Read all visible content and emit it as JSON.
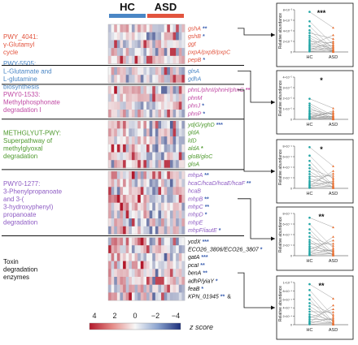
{
  "chart_data": {
    "type": "heatmap",
    "groups": [
      {
        "name": "HC",
        "color": "#4a86c5"
      },
      {
        "name": "ASD",
        "color": "#e2543e"
      }
    ],
    "pathways": [
      {
        "name": "PWY_4041:\nγ-Glutamyl\ncycle",
        "color": "#e2543e",
        "genes": [
          {
            "label": "gshA",
            "stars": "**",
            "star_color": "#3b5fb0"
          },
          {
            "label": "gshB",
            "stars": "*",
            "star_color": "#3b5fb0"
          },
          {
            "label": "ggt",
            "stars": "",
            "star_color": ""
          },
          {
            "label": "pxpA/pxpB/pxpC",
            "stars": "",
            "star_color": ""
          },
          {
            "label": "pepB",
            "stars": "*",
            "star_color": "#3b5fb0"
          }
        ]
      },
      {
        "name": "PWY-5505:\nL-Glutamate and\nL-glutamine\nbiosynthesis",
        "color": "#4a86c5",
        "genes": [
          {
            "label": "glnA",
            "stars": "",
            "star_color": ""
          },
          {
            "label": "gdhA",
            "stars": "",
            "star_color": ""
          }
        ]
      },
      {
        "name": "PWY0-1533:\nMethylphosphonate\ndegradation I",
        "color": "#c04aa4",
        "genes": [
          {
            "label": "phnL/phnI/phnH/phnG",
            "stars": "**",
            "star_color": "#c04aa4"
          },
          {
            "label": "phnM",
            "stars": "",
            "star_color": ""
          },
          {
            "label": "phnJ",
            "stars": "*",
            "star_color": "#3b5fb0"
          },
          {
            "label": "phnP",
            "stars": "*",
            "star_color": "#3b5fb0"
          }
        ]
      },
      {
        "name": "METHGLYUT-PWY:\nSuperpathway of\nmethylglyoxal\ndegradation",
        "color": "#4f9a2f",
        "genes": [
          {
            "label": "ydjG/yghD",
            "stars": "***",
            "star_color": "#3b5fb0"
          },
          {
            "label": "gldA",
            "stars": "",
            "star_color": ""
          },
          {
            "label": "ldD",
            "stars": "",
            "star_color": ""
          },
          {
            "label": "aldA",
            "stars": "*",
            "star_color": "#4f9a2f"
          },
          {
            "label": "gloB/gloC",
            "stars": "",
            "star_color": ""
          },
          {
            "label": "gloA",
            "stars": "",
            "star_color": ""
          }
        ]
      },
      {
        "name": "PWY0-1277:\n3-Phenylpropanoate\nand 3-(\n3-hydroxyphenyl)\npropanoate\ndegradation",
        "color": "#8e5cc4",
        "genes": [
          {
            "label": "mhpA",
            "stars": "**",
            "star_color": "#3b5fb0"
          },
          {
            "label": "hcaC/hcaD/hcaE/hcaF",
            "stars": "**",
            "star_color": "#3b5fb0"
          },
          {
            "label": "hcaB",
            "stars": "",
            "star_color": ""
          },
          {
            "label": "mhpB",
            "stars": "**",
            "star_color": "#3b5fb0"
          },
          {
            "label": "mhpC",
            "stars": "**",
            "star_color": "#3b5fb0"
          },
          {
            "label": "mhpD",
            "stars": "*",
            "star_color": "#3b5fb0"
          },
          {
            "label": "mhpE",
            "stars": "",
            "star_color": ""
          },
          {
            "label": "mhpF/iautE",
            "stars": "*",
            "star_color": "#3b5fb0"
          }
        ]
      },
      {
        "name": "Toxin\ndegradation\nenzymes",
        "color": "#111111",
        "genes": [
          {
            "label": "ycdX",
            "stars": "***",
            "star_color": "#3b5fb0"
          },
          {
            "label": "ECO26_3806/ECO26_3807",
            "stars": "*",
            "star_color": "#3b5fb0"
          },
          {
            "label": "gatA",
            "stars": "***",
            "star_color": "#3b5fb0"
          },
          {
            "label": "pcaI",
            "stars": "**",
            "star_color": "#3b5fb0"
          },
          {
            "label": "benA",
            "stars": "**",
            "star_color": "#3b5fb0"
          },
          {
            "label": "adhP/yiaY",
            "stars": "*",
            "star_color": "#3b5fb0"
          },
          {
            "label": "feaB",
            "stars": "*",
            "star_color": "#3b5fb0"
          },
          {
            "label": "KPN_01945",
            "stars": "**",
            "star_color": "#3b5fb0",
            "suffix": "&"
          }
        ]
      }
    ],
    "colorbar": {
      "ticks": [
        4,
        2,
        0,
        -2,
        -4
      ],
      "label": "z score"
    },
    "side_panels": [
      {
        "significance": "***",
        "ylabel": "Relative abundance",
        "ytick_labels": [
          "8×10⁻³",
          "6×10⁻³",
          "4×10⁻³",
          "2×10⁻³",
          "0"
        ],
        "xticks": [
          "HC",
          "ASD"
        ],
        "hc": [
          7.6,
          5.8,
          4.9,
          4.1,
          3.6,
          3.1,
          2.7,
          2.3,
          2.0,
          1.7,
          1.4,
          1.2,
          1.0,
          0.8,
          0.6,
          0.4,
          0.2,
          0.1
        ],
        "asd": [
          4.6,
          3.2,
          2.5,
          2.0,
          1.7,
          1.4,
          1.2,
          1.0,
          0.8,
          0.6,
          0.5,
          0.4,
          0.3,
          0.2,
          0.15,
          0.1,
          0.05,
          0.02
        ]
      },
      {
        "significance": "*",
        "ylabel": "Relative abundance",
        "ytick_labels": [
          "4×10⁻⁵",
          "3×10⁻⁵",
          "2×10⁻⁵",
          "1×10⁻⁵",
          "0"
        ],
        "xticks": [
          "HC",
          "ASD"
        ],
        "hc": [
          3.9,
          3.0,
          2.6,
          2.2,
          1.8,
          1.5,
          1.2,
          1.0,
          0.8,
          0.6,
          0.5,
          0.4,
          0.3,
          0.2,
          0.1,
          0.05
        ],
        "asd": [
          2.1,
          1.6,
          1.3,
          1.1,
          0.9,
          0.7,
          0.6,
          0.5,
          0.4,
          0.3,
          0.25,
          0.2,
          0.15,
          0.1,
          0.05,
          0.02
        ]
      },
      {
        "significance": "*",
        "ylabel": "Relative abundance",
        "ytick_labels": [
          "8×10⁻⁴",
          "6×10⁻⁴",
          "4×10⁻⁴",
          "2×10⁻⁴",
          "0"
        ],
        "xticks": [
          "HC",
          "ASD"
        ],
        "hc": [
          7.8,
          6.2,
          5.2,
          4.4,
          3.8,
          3.2,
          2.7,
          2.2,
          1.8,
          1.4,
          1.1,
          0.8,
          0.6,
          0.4,
          0.2,
          0.1
        ],
        "asd": [
          4.2,
          3.3,
          2.8,
          2.4,
          2.0,
          1.7,
          1.4,
          1.1,
          0.9,
          0.7,
          0.5,
          0.4,
          0.3,
          0.2,
          0.1,
          0.05
        ]
      },
      {
        "significance": "**",
        "ylabel": "Relative abundance",
        "ytick_labels": [
          "8×10⁻⁴",
          "6×10⁻⁴",
          "4×10⁻⁴",
          "2×10⁻⁴",
          "0"
        ],
        "xticks": [
          "HC",
          "ASD"
        ],
        "hc": [
          7.2,
          6.0,
          5.0,
          4.3,
          3.6,
          3.0,
          2.6,
          2.2,
          1.8,
          1.5,
          1.2,
          0.9,
          0.6,
          0.4,
          0.2,
          0.1
        ],
        "asd": [
          5.4,
          3.6,
          2.9,
          2.3,
          1.9,
          1.5,
          1.2,
          1.0,
          0.8,
          0.6,
          0.5,
          0.4,
          0.3,
          0.2,
          0.1,
          0.05
        ]
      },
      {
        "significance": "**",
        "ylabel": "Relative abundance",
        "ytick_labels": [
          "1×10⁻³",
          "8×10⁻⁴",
          "6×10⁻⁴",
          "4×10⁻⁴",
          "2×10⁻⁴",
          "0"
        ],
        "xticks": [
          "HC",
          "ASD"
        ],
        "hc": [
          9.6,
          8.2,
          7.0,
          6.0,
          5.1,
          4.4,
          3.7,
          3.1,
          2.5,
          2.0,
          1.6,
          1.2,
          0.8,
          0.5,
          0.3,
          0.1
        ],
        "asd": [
          6.2,
          4.6,
          3.7,
          3.0,
          2.4,
          2.0,
          1.6,
          1.3,
          1.0,
          0.8,
          0.6,
          0.4,
          0.3,
          0.2,
          0.1,
          0.05
        ]
      }
    ]
  }
}
